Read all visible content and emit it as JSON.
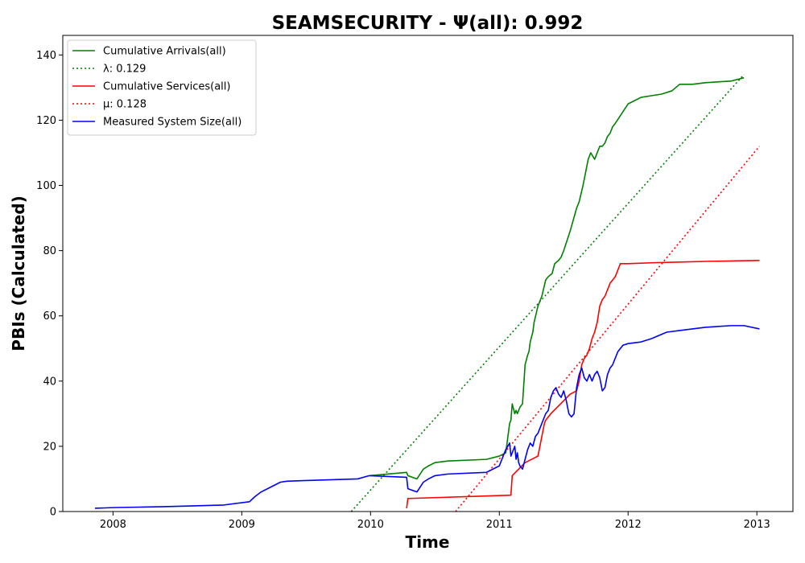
{
  "chart_data": {
    "type": "line",
    "title": "SEAMSECURITY -  Ψ(all): 0.992",
    "xlabel": "Time",
    "ylabel": "PBIs (Calculated)",
    "xlim": [
      2007.61,
      2013.28
    ],
    "ylim": [
      0,
      146
    ],
    "x_ticks": [
      2008,
      2009,
      2010,
      2011,
      2012,
      2013
    ],
    "x_tick_labels": [
      "2008",
      "2009",
      "2010",
      "2011",
      "2012",
      "2013"
    ],
    "y_ticks": [
      0,
      20,
      40,
      60,
      80,
      100,
      120,
      140
    ],
    "y_tick_labels": [
      "0",
      "20",
      "40",
      "60",
      "80",
      "100",
      "120",
      "140"
    ],
    "grid": false,
    "legend_position": "upper-left",
    "series": [
      {
        "name": "Cumulative Arrivals(all)",
        "color": "#008000",
        "style": "solid",
        "x": [
          2009.99,
          2010.28,
          2010.29,
          2010.36,
          2010.41,
          2010.45,
          2010.5,
          2010.6,
          2010.9,
          2011.0,
          2011.05,
          2011.08,
          2011.09,
          2011.1,
          2011.12,
          2011.13,
          2011.14,
          2011.15,
          2011.16,
          2011.18,
          2011.2,
          2011.22,
          2011.23,
          2011.24,
          2011.26,
          2011.27,
          2011.3,
          2011.33,
          2011.36,
          2011.38,
          2011.41,
          2011.43,
          2011.46,
          2011.48,
          2011.5,
          2011.55,
          2011.6,
          2011.62,
          2011.65,
          2011.67,
          2011.69,
          2011.71,
          2011.74,
          2011.76,
          2011.78,
          2011.8,
          2011.82,
          2011.84,
          2011.86,
          2011.88,
          2011.9,
          2011.95,
          2012.0,
          2012.05,
          2012.1,
          2012.18,
          2012.26,
          2012.34,
          2012.4,
          2012.5,
          2012.6,
          2012.8,
          2012.9
        ],
        "y": [
          11,
          12,
          11,
          10,
          13,
          14,
          15,
          15.5,
          16,
          17,
          18,
          27,
          28,
          33,
          30,
          31,
          30,
          31,
          32,
          33,
          45,
          48,
          49,
          52,
          55,
          58,
          63,
          66,
          71,
          72,
          73,
          76,
          77,
          78,
          80,
          86,
          93,
          95,
          100,
          104,
          108,
          110,
          108,
          110,
          112,
          112,
          113,
          115,
          116,
          118,
          119,
          122,
          125,
          126,
          127,
          127.5,
          128,
          129,
          131,
          131,
          131.5,
          132,
          133
        ]
      },
      {
        "name": "λ: 0.129",
        "color": "#008000",
        "style": "dotted",
        "x": [
          2009.85,
          2012.9
        ],
        "y": [
          0,
          134
        ]
      },
      {
        "name": "Cumulative Services(all)",
        "color": "#ff0000",
        "style": "solid",
        "x": [
          2010.28,
          2010.29,
          2011.09,
          2011.1,
          2011.2,
          2011.3,
          2011.35,
          2011.36,
          2011.4,
          2011.5,
          2011.55,
          2011.6,
          2011.62,
          2011.64,
          2011.66,
          2011.68,
          2011.7,
          2011.72,
          2011.74,
          2011.76,
          2011.78,
          2011.8,
          2011.82,
          2011.84,
          2011.86,
          2011.88,
          2011.9,
          2011.92,
          2011.94,
          2012.0,
          2012.2,
          2012.4,
          2012.6,
          2013.02
        ],
        "y": [
          1,
          4,
          5,
          11,
          15,
          17,
          27,
          28,
          30,
          34,
          36,
          37,
          40,
          45,
          47,
          48,
          50,
          53,
          55,
          58,
          63,
          65,
          66,
          68,
          70,
          71,
          72,
          74,
          76,
          76,
          76.3,
          76.5,
          76.7,
          77
        ]
      },
      {
        "name": "μ: 0.128",
        "color": "#ff0000",
        "style": "dotted",
        "x": [
          2010.66,
          2013.02
        ],
        "y": [
          0,
          112
        ]
      },
      {
        "name": "Measured System Size(all)",
        "color": "#0000ff",
        "style": "solid",
        "x": [
          2007.86,
          2008.0,
          2008.4,
          2008.86,
          2009.06,
          2009.1,
          2009.15,
          2009.2,
          2009.3,
          2009.35,
          2009.5,
          2009.9,
          2009.99,
          2010.28,
          2010.29,
          2010.36,
          2010.41,
          2010.45,
          2010.5,
          2010.6,
          2010.9,
          2011.0,
          2011.05,
          2011.08,
          2011.09,
          2011.1,
          2011.12,
          2011.13,
          2011.14,
          2011.15,
          2011.16,
          2011.18,
          2011.2,
          2011.22,
          2011.24,
          2011.26,
          2011.28,
          2011.3,
          2011.32,
          2011.34,
          2011.36,
          2011.38,
          2011.4,
          2011.42,
          2011.44,
          2011.46,
          2011.48,
          2011.5,
          2011.52,
          2011.54,
          2011.56,
          2011.58,
          2011.6,
          2011.62,
          2011.64,
          2011.66,
          2011.68,
          2011.7,
          2011.72,
          2011.74,
          2011.76,
          2011.78,
          2011.8,
          2011.82,
          2011.84,
          2011.86,
          2011.88,
          2011.9,
          2011.92,
          2011.94,
          2011.96,
          2012.0,
          2012.1,
          2012.18,
          2012.3,
          2012.4,
          2012.5,
          2012.6,
          2012.8,
          2012.9,
          2013.02
        ],
        "y": [
          1,
          1.2,
          1.5,
          2,
          3,
          4.5,
          6,
          7,
          9,
          9.3,
          9.5,
          10,
          11,
          10.5,
          7,
          6,
          9,
          10,
          11,
          11.5,
          12,
          14,
          19,
          21,
          17,
          18,
          20,
          16,
          18,
          15,
          14,
          13,
          16,
          19,
          21,
          20,
          23,
          24,
          26,
          28,
          30,
          31,
          35,
          37,
          38,
          36,
          35,
          37,
          34,
          30,
          29,
          30,
          38,
          42,
          44,
          41,
          40,
          42,
          40,
          42,
          43,
          41,
          37,
          38,
          42,
          44,
          45,
          47,
          49,
          50,
          51,
          51.5,
          52,
          53,
          55,
          55.5,
          56,
          56.5,
          57,
          57,
          56
        ]
      }
    ]
  }
}
